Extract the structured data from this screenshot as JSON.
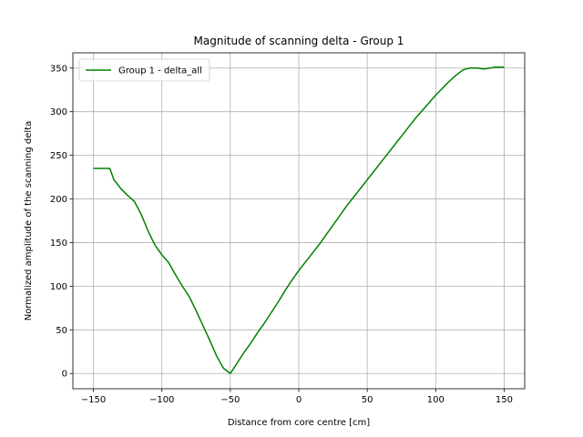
{
  "chart_data": {
    "type": "line",
    "title": "Magnitude of scanning delta - Group 1",
    "xlabel": "Distance from core centre [cm]",
    "ylabel": "Normalized amplitude of the scanning delta",
    "xlim": [
      -165,
      165
    ],
    "ylim": [
      -17.5,
      367.5
    ],
    "xticks": [
      -150,
      -100,
      -50,
      0,
      50,
      100,
      150
    ],
    "yticks": [
      0,
      50,
      100,
      150,
      200,
      250,
      300,
      350
    ],
    "grid": true,
    "legend": "top-left",
    "series": [
      {
        "name": "Group 1 - delta_all",
        "color": "#008000",
        "x": [
          -150,
          -145,
          -138,
          -135,
          -130,
          -125,
          -120,
          -115,
          -110,
          -105,
          -100,
          -95,
          -90,
          -85,
          -80,
          -75,
          -70,
          -65,
          -60,
          -55,
          -50,
          -45,
          -40,
          -35,
          -30,
          -25,
          -20,
          -15,
          -10,
          -5,
          0,
          5,
          10,
          15,
          20,
          25,
          30,
          35,
          40,
          45,
          50,
          55,
          60,
          65,
          70,
          75,
          80,
          85,
          90,
          95,
          100,
          105,
          110,
          115,
          120,
          125,
          130,
          135,
          140,
          143,
          150
        ],
        "y": [
          235,
          235,
          235,
          222,
          212,
          204,
          197,
          182,
          163,
          147,
          136,
          127,
          113,
          100,
          88,
          72,
          55,
          38,
          20,
          6,
          0,
          12,
          24,
          35,
          47,
          58,
          70,
          82,
          95,
          107,
          118,
          128,
          138,
          148,
          159,
          170,
          181,
          192,
          202,
          212,
          222,
          232,
          242,
          252,
          262,
          272,
          282,
          292,
          301,
          310,
          319,
          327,
          335,
          342,
          348,
          350,
          350,
          349,
          350,
          351,
          351
        ]
      }
    ]
  }
}
